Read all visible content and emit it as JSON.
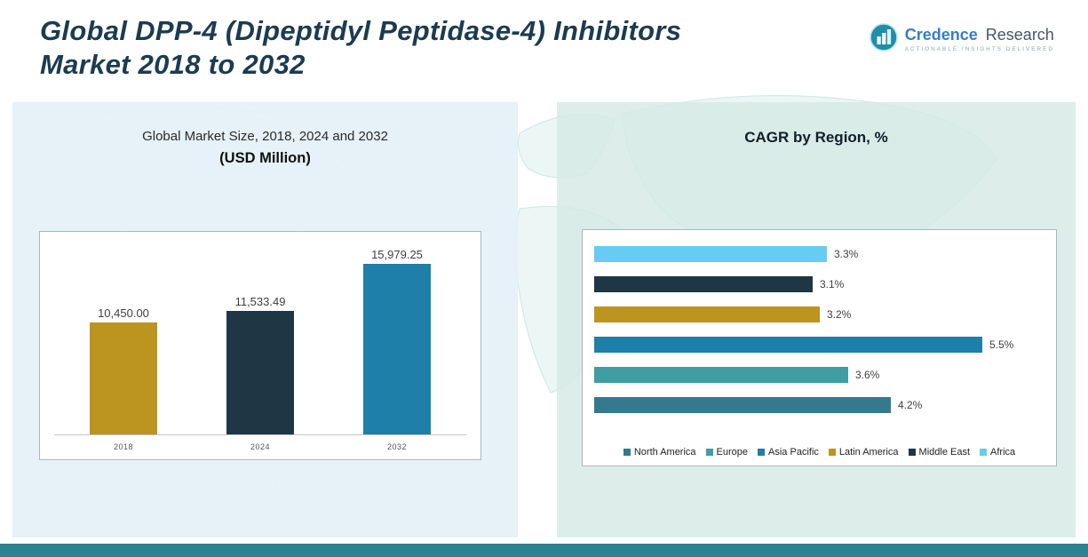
{
  "header": {
    "title_line1": "Global DPP-4 (Dipeptidyl Peptidase-4) Inhibitors",
    "title_line2": "Market 2018 to 2032"
  },
  "logo": {
    "brand_part1": "Credence",
    "brand_part2": "Research",
    "tagline": "Actionable Insights Delivered"
  },
  "left_panel": {
    "title": "Global Market Size, 2018, 2024 and 2032",
    "subtitle": "(USD Million)"
  },
  "right_panel": {
    "title": "CAGR by Region, %"
  },
  "chart_data": [
    {
      "type": "bar",
      "title": "Global Market Size, 2018, 2024 and 2032 (USD Million)",
      "categories": [
        "2018",
        "2024",
        "2032"
      ],
      "values": [
        10450.0,
        11533.49,
        15979.25
      ],
      "data_labels": [
        "10,450.00",
        "11,533.49",
        "15,979.25"
      ],
      "colors": [
        "#BC9420",
        "#1F3644",
        "#1E7FA8"
      ],
      "ylabel": "USD Million",
      "ylim": [
        0,
        16000
      ],
      "grid": false,
      "legend_position": "none"
    },
    {
      "type": "bar",
      "orientation": "horizontal",
      "title": "CAGR by Region, %",
      "categories": [
        "Africa",
        "Middle East",
        "Latin America",
        "Asia Pacific",
        "Europe",
        "North America"
      ],
      "values": [
        3.3,
        3.1,
        3.2,
        5.5,
        3.6,
        4.2
      ],
      "data_labels": [
        "3.3%",
        "3.1%",
        "3.2%",
        "5.5%",
        "3.6%",
        "4.2%"
      ],
      "colors": [
        "#67CCF1",
        "#1F3644",
        "#BC9420",
        "#1E7FA8",
        "#3E9EA2",
        "#35798F"
      ],
      "xlim": [
        0,
        6
      ],
      "legend": [
        "North America",
        "Europe",
        "Asia Pacific",
        "Latin America",
        "Middle East",
        "Africa"
      ],
      "legend_colors": [
        "#35798F",
        "#3E9EA2",
        "#1E7FA8",
        "#BC9420",
        "#1F3644",
        "#67CCF1"
      ],
      "legend_position": "bottom"
    }
  ]
}
